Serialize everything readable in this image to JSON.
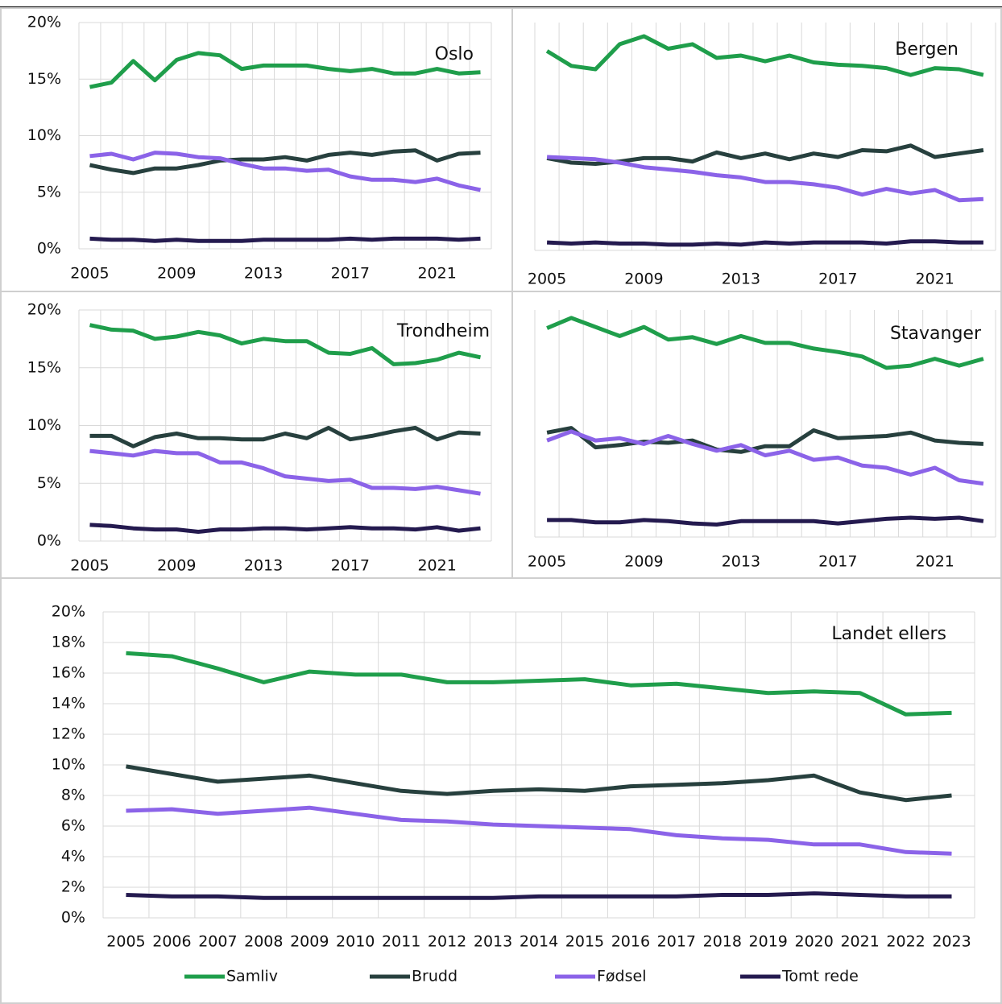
{
  "chart_data": [
    {
      "type": "line",
      "title": "Oslo",
      "categories": [
        "2005",
        null,
        null,
        null,
        "2009",
        null,
        null,
        null,
        "2013",
        null,
        null,
        null,
        "2017",
        null,
        null,
        null,
        "2021",
        null,
        null
      ],
      "ylim": [
        0,
        20
      ],
      "yticks": [
        {
          "value": 0,
          "label": "0%"
        },
        {
          "value": 5,
          "label": "5%"
        },
        {
          "value": 10,
          "label": "10%"
        },
        {
          "value": 15,
          "label": "15%"
        },
        {
          "value": 20,
          "label": "20%"
        }
      ],
      "series": [
        {
          "color": "#1f9e4b",
          "values": [
            14.3,
            14.7,
            16.6,
            14.9,
            16.7,
            17.3,
            17.1,
            15.9,
            16.2,
            16.2,
            16.2,
            15.9,
            15.7,
            15.9,
            15.5,
            15.5,
            15.9,
            15.5,
            15.6
          ]
        },
        {
          "color": "#27403e",
          "values": [
            7.4,
            7.0,
            6.7,
            7.1,
            7.1,
            7.4,
            7.8,
            7.9,
            7.9,
            8.1,
            7.8,
            8.3,
            8.5,
            8.3,
            8.6,
            8.7,
            7.8,
            8.4,
            8.5
          ]
        },
        {
          "color": "#8b63e8",
          "values": [
            8.2,
            8.4,
            7.9,
            8.5,
            8.4,
            8.1,
            8.0,
            7.5,
            7.1,
            7.1,
            6.9,
            7.0,
            6.4,
            6.1,
            6.1,
            5.9,
            6.2,
            5.6,
            5.2
          ]
        },
        {
          "color": "#241a4f",
          "values": [
            0.9,
            0.8,
            0.8,
            0.7,
            0.8,
            0.7,
            0.7,
            0.7,
            0.8,
            0.8,
            0.8,
            0.8,
            0.9,
            0.8,
            0.9,
            0.9,
            0.9,
            0.8,
            0.9
          ]
        }
      ]
    },
    {
      "type": "line",
      "title": "Bergen",
      "categories": [
        "2005",
        null,
        null,
        null,
        "2009",
        null,
        null,
        null,
        "2013",
        null,
        null,
        null,
        "2017",
        null,
        null,
        null,
        "2021",
        null,
        null
      ],
      "ylim": [
        0,
        20
      ],
      "series": [
        {
          "color": "#1f9e4b",
          "values": [
            17.5,
            16.2,
            15.9,
            18.1,
            18.8,
            17.7,
            18.1,
            16.9,
            17.1,
            16.6,
            17.1,
            16.5,
            16.3,
            16.2,
            16.0,
            15.4,
            16.0,
            15.9,
            15.4
          ]
        },
        {
          "color": "#27403e",
          "values": [
            8.1,
            7.7,
            7.6,
            7.8,
            8.1,
            8.1,
            7.8,
            8.6,
            8.1,
            8.5,
            8.0,
            8.5,
            8.2,
            8.8,
            8.7,
            9.2,
            8.2,
            8.5,
            8.8
          ]
        },
        {
          "color": "#8b63e8",
          "values": [
            8.2,
            8.1,
            8.0,
            7.7,
            7.3,
            7.1,
            6.9,
            6.6,
            6.4,
            6.0,
            6.0,
            5.8,
            5.5,
            4.9,
            5.4,
            5.0,
            5.3,
            4.4,
            4.5
          ]
        },
        {
          "color": "#241a4f",
          "values": [
            0.7,
            0.6,
            0.7,
            0.6,
            0.6,
            0.5,
            0.5,
            0.6,
            0.5,
            0.7,
            0.6,
            0.7,
            0.7,
            0.7,
            0.6,
            0.8,
            0.8,
            0.7,
            0.7
          ]
        }
      ]
    },
    {
      "type": "line",
      "title": "Trondheim",
      "categories": [
        "2005",
        null,
        null,
        null,
        "2009",
        null,
        null,
        null,
        "2013",
        null,
        null,
        null,
        "2017",
        null,
        null,
        null,
        "2021",
        null,
        null
      ],
      "ylim": [
        0,
        20
      ],
      "yticks": [
        {
          "value": 0,
          "label": "0%"
        },
        {
          "value": 5,
          "label": "5%"
        },
        {
          "value": 10,
          "label": "10%"
        },
        {
          "value": 15,
          "label": "15%"
        },
        {
          "value": 20,
          "label": "20%"
        }
      ],
      "series": [
        {
          "color": "#1f9e4b",
          "values": [
            18.7,
            18.3,
            18.2,
            17.5,
            17.7,
            18.1,
            17.8,
            17.1,
            17.5,
            17.3,
            17.3,
            16.3,
            16.2,
            16.7,
            15.3,
            15.4,
            15.7,
            16.3,
            15.9
          ]
        },
        {
          "color": "#27403e",
          "values": [
            9.1,
            9.1,
            8.2,
            9.0,
            9.3,
            8.9,
            8.9,
            8.8,
            8.8,
            9.3,
            8.9,
            9.8,
            8.8,
            9.1,
            9.5,
            9.8,
            8.8,
            9.4,
            9.3
          ]
        },
        {
          "color": "#8b63e8",
          "values": [
            7.8,
            7.6,
            7.4,
            7.8,
            7.6,
            7.6,
            6.8,
            6.8,
            6.3,
            5.6,
            5.4,
            5.2,
            5.3,
            4.6,
            4.6,
            4.5,
            4.7,
            4.4,
            4.1
          ]
        },
        {
          "color": "#241a4f",
          "values": [
            1.4,
            1.3,
            1.1,
            1.0,
            1.0,
            0.8,
            1.0,
            1.0,
            1.1,
            1.1,
            1.0,
            1.1,
            1.2,
            1.1,
            1.1,
            1.0,
            1.2,
            0.9,
            1.1
          ]
        }
      ]
    },
    {
      "type": "line",
      "title": "Stavanger",
      "categories": [
        "2005",
        null,
        null,
        null,
        "2009",
        null,
        null,
        null,
        "2013",
        null,
        null,
        null,
        "2017",
        null,
        null,
        null,
        "2021",
        null,
        null
      ],
      "ylim": [
        0,
        20
      ],
      "series": [
        {
          "color": "#1f9e4b",
          "values": [
            18.4,
            19.3,
            18.5,
            17.7,
            18.5,
            17.4,
            17.6,
            17.0,
            17.7,
            17.1,
            17.1,
            16.6,
            16.3,
            15.9,
            14.9,
            15.1,
            15.7,
            15.1,
            15.7
          ]
        },
        {
          "color": "#27403e",
          "values": [
            9.2,
            9.6,
            7.9,
            8.1,
            8.4,
            8.3,
            8.5,
            7.7,
            7.5,
            8.0,
            8.0,
            9.4,
            8.7,
            8.8,
            8.9,
            9.2,
            8.5,
            8.3,
            8.2
          ]
        },
        {
          "color": "#8b63e8",
          "values": [
            8.5,
            9.3,
            8.5,
            8.7,
            8.2,
            8.9,
            8.2,
            7.6,
            8.1,
            7.2,
            7.6,
            6.8,
            7.0,
            6.3,
            6.1,
            5.5,
            6.1,
            5.0,
            4.7
          ]
        },
        {
          "color": "#241a4f",
          "values": [
            1.5,
            1.5,
            1.3,
            1.3,
            1.5,
            1.4,
            1.2,
            1.1,
            1.4,
            1.4,
            1.4,
            1.4,
            1.2,
            1.4,
            1.6,
            1.7,
            1.6,
            1.7,
            1.4
          ]
        }
      ]
    },
    {
      "type": "line",
      "title": "Landet ellers",
      "legend": "bottom",
      "categories": [
        "2005",
        "2006",
        "2007",
        "2008",
        "2009",
        "2010",
        "2011",
        "2012",
        "2013",
        "2014",
        "2015",
        "2016",
        "2017",
        "2018",
        "2019",
        "2020",
        "2021",
        "2022",
        "2023"
      ],
      "ylim": [
        0,
        20
      ],
      "yticks": [
        {
          "value": 0,
          "label": "0%"
        },
        {
          "value": 2,
          "label": "2%"
        },
        {
          "value": 4,
          "label": "4%"
        },
        {
          "value": 6,
          "label": "6%"
        },
        {
          "value": 8,
          "label": "8%"
        },
        {
          "value": 10,
          "label": "10%"
        },
        {
          "value": 12,
          "label": "12%"
        },
        {
          "value": 14,
          "label": "14%"
        },
        {
          "value": 16,
          "label": "16%"
        },
        {
          "value": 18,
          "label": "18%"
        },
        {
          "value": 20,
          "label": "20%"
        }
      ],
      "series": [
        {
          "name": "Samliv",
          "color": "#1f9e4b",
          "values": [
            17.3,
            17.1,
            16.3,
            15.4,
            16.1,
            15.9,
            15.9,
            15.4,
            15.4,
            15.5,
            15.6,
            15.2,
            15.3,
            15.0,
            14.7,
            14.8,
            14.7,
            13.3,
            13.4
          ]
        },
        {
          "name": "Brudd",
          "color": "#27403e",
          "values": [
            9.9,
            9.4,
            8.9,
            9.1,
            9.3,
            8.8,
            8.3,
            8.1,
            8.3,
            8.4,
            8.3,
            8.6,
            8.7,
            8.8,
            9.0,
            9.3,
            8.2,
            7.7,
            8.0
          ]
        },
        {
          "name": "Fødsel",
          "color": "#8b63e8",
          "values": [
            7.0,
            7.1,
            6.8,
            7.0,
            7.2,
            6.8,
            6.4,
            6.3,
            6.1,
            6.0,
            5.9,
            5.8,
            5.4,
            5.2,
            5.1,
            4.8,
            4.8,
            4.3,
            4.2
          ]
        },
        {
          "name": "Tomt rede",
          "color": "#241a4f",
          "values": [
            1.5,
            1.4,
            1.4,
            1.3,
            1.3,
            1.3,
            1.3,
            1.3,
            1.3,
            1.4,
            1.4,
            1.4,
            1.4,
            1.5,
            1.5,
            1.6,
            1.5,
            1.4,
            1.4
          ]
        }
      ]
    }
  ]
}
